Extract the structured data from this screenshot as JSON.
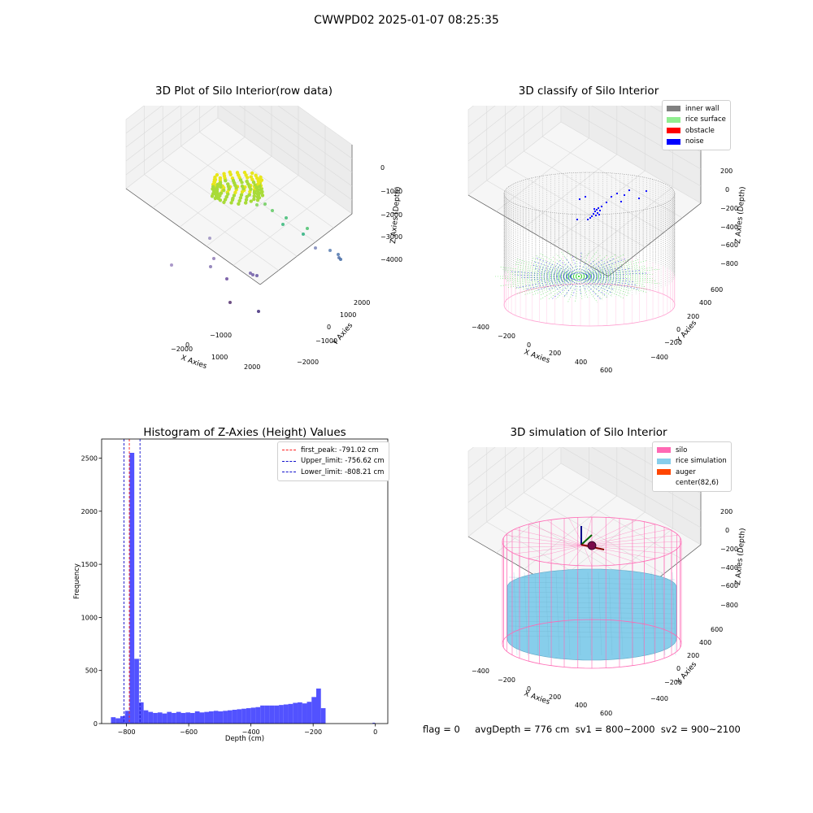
{
  "figure": {
    "title": "CWWPD02 2025-01-07 08:25:35",
    "footer": "flag = 0     avgDepth = 776 cm  sv1 = 800~2000  sv2 = 900~2100"
  },
  "colors": {
    "hist_bar": "#5252ff",
    "first_peak": "#ff2020",
    "limits": "#1010cc",
    "inner_wall": "#808080",
    "rice_surface": "#90ee90",
    "obstacle": "#ff0000",
    "noise": "#0000ff",
    "silo": "#ff69b4",
    "rice_simulation": "#87ceeb",
    "auger": "#ff4500"
  },
  "panels": {
    "raw": {
      "title": "3D Plot of Silo Interior(row data)",
      "xlabel": "X Axies",
      "ylabel": "Y Axies",
      "zlabel": "Z Axies (Depth)",
      "xticks": [
        "−2000",
        "−1000",
        "0",
        "1000",
        "2000"
      ],
      "yticks": [
        "2000",
        "1000",
        "0",
        "−1000",
        "−2000"
      ],
      "zticks": [
        "0",
        "−1000",
        "−2000",
        "−3000",
        "−4000"
      ]
    },
    "classify": {
      "title": "3D classify of Silo Interior",
      "xlabel": "X Axies",
      "ylabel": "Y Axies",
      "zlabel": "Z Axies (Depth)",
      "xticks": [
        "−400",
        "−200",
        "0",
        "200",
        "400",
        "600"
      ],
      "yticks": [
        "600",
        "400",
        "200",
        "0",
        "−200",
        "−400"
      ],
      "zticks": [
        "200",
        "0",
        "−200",
        "−400",
        "−600",
        "−800"
      ],
      "legend": [
        "inner wall",
        "rice surface",
        "obstacle",
        "noise"
      ]
    },
    "hist": {
      "title": "Histogram of Z-Axies (Height) Values",
      "xlabel": "Depth (cm)",
      "ylabel": "Frequency",
      "xticks": [
        "−800",
        "−600",
        "−400",
        "−200",
        "0"
      ],
      "yticks": [
        "0",
        "500",
        "1000",
        "1500",
        "2000",
        "2500"
      ],
      "legend": [
        "first_peak: -791.02 cm",
        "Upper_limit: -756.62 cm",
        "Lower_limit: -808.21 cm"
      ]
    },
    "sim": {
      "title": "3D simulation of Silo Interior",
      "xlabel": "X Axies",
      "ylabel": "Y Axies",
      "zlabel": "Z Axies (Depth)",
      "xticks": [
        "−400",
        "−200",
        "0",
        "200",
        "400",
        "600"
      ],
      "yticks": [
        "600",
        "400",
        "200",
        "0",
        "−200",
        "−400"
      ],
      "zticks": [
        "200",
        "0",
        "−200",
        "−400",
        "−600",
        "−800"
      ],
      "legend": [
        "silo",
        "rice simulation",
        "auger",
        "center(82,6)"
      ]
    }
  },
  "chart_data": [
    {
      "type": "bar",
      "title": "Histogram of Z-Axies (Height) Values",
      "xlabel": "Depth (cm)",
      "ylabel": "Frequency",
      "xlim": [
        -880,
        40
      ],
      "ylim": [
        0,
        2680
      ],
      "bin_start": -850,
      "bin_width": 15,
      "values": [
        60,
        50,
        70,
        120,
        2550,
        610,
        200,
        125,
        110,
        100,
        105,
        95,
        110,
        100,
        110,
        100,
        105,
        100,
        115,
        105,
        110,
        115,
        120,
        115,
        120,
        125,
        130,
        135,
        140,
        145,
        150,
        155,
        170,
        170,
        170,
        170,
        175,
        180,
        185,
        195,
        200,
        190,
        205,
        250,
        330,
        145
      ],
      "outliers": [
        {
          "x": -5,
          "value": 8
        }
      ],
      "lines": [
        {
          "name": "first_peak: -791.02 cm",
          "x": -791.02
        },
        {
          "name": "Upper_limit: -756.62 cm",
          "x": -756.62
        },
        {
          "name": "Lower_limit: -808.21 cm",
          "x": -808.21
        }
      ]
    },
    {
      "type": "scatter",
      "title": "3D Plot of Silo Interior(row data)",
      "xlabel": "X Axies",
      "ylabel": "Y Axies",
      "zlabel": "Z Axies (Depth)",
      "xlim": [
        -2000,
        2000
      ],
      "ylim": [
        -2000,
        2000
      ],
      "zlim": [
        -4000,
        0
      ]
    },
    {
      "type": "scatter",
      "title": "3D classify of Silo Interior",
      "xlabel": "X Axies",
      "ylabel": "Y Axies",
      "zlabel": "Z Axies (Depth)",
      "xlim": [
        -400,
        600
      ],
      "ylim": [
        -400,
        600
      ],
      "zlim": [
        -800,
        200
      ],
      "series": [
        {
          "name": "inner wall"
        },
        {
          "name": "rice surface"
        },
        {
          "name": "obstacle"
        },
        {
          "name": "noise"
        }
      ]
    },
    {
      "type": "scatter",
      "title": "3D simulation of Silo Interior",
      "xlabel": "X Axies",
      "ylabel": "Y Axies",
      "zlabel": "Z Axies (Depth)",
      "xlim": [
        -400,
        600
      ],
      "ylim": [
        -400,
        600
      ],
      "zlim": [
        -800,
        200
      ],
      "series": [
        {
          "name": "silo"
        },
        {
          "name": "rice simulation"
        },
        {
          "name": "auger"
        },
        {
          "name": "center(82,6)"
        }
      ]
    }
  ]
}
